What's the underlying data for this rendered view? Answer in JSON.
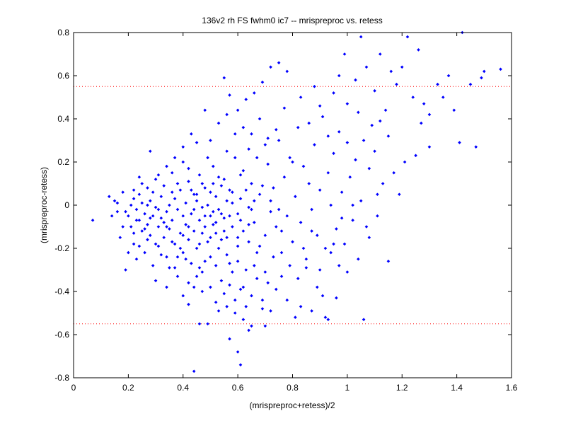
{
  "chart_data": {
    "type": "scatter",
    "title": "136v2 rh FS fwhm0 ic7 -- mrispreproc vs. retess",
    "xlabel": "(mrispreproc+retess)/2",
    "ylabel": "(mrispreproc-retess)",
    "xlim": [
      0,
      1.6
    ],
    "ylim": [
      -0.8,
      0.8
    ],
    "xticks": [
      "0",
      "0.2",
      "0.4",
      "0.6",
      "0.8",
      "1",
      "1.2",
      "1.4",
      "1.6"
    ],
    "yticks": [
      "0.8",
      "0.6",
      "0.4",
      "0.2",
      "0",
      "-0.2",
      "-0.4",
      "-0.6",
      "-0.8"
    ],
    "reference_lines": [
      0.55,
      -0.55
    ],
    "grid": false,
    "colors": {
      "points": "#0000ff",
      "reference": "#ff0000",
      "axes": "#000000"
    },
    "points": [
      [
        0.07,
        -0.07
      ],
      [
        0.13,
        0.04
      ],
      [
        0.14,
        -0.05
      ],
      [
        0.15,
        0.02
      ],
      [
        0.16,
        -0.03
      ],
      [
        0.17,
        -0.15
      ],
      [
        0.18,
        0.06
      ],
      [
        0.19,
        -0.3
      ],
      [
        0.2,
        -0.05
      ],
      [
        0.21,
        0.0
      ],
      [
        0.21,
        -0.1
      ],
      [
        0.22,
        0.03
      ],
      [
        0.22,
        -0.18
      ],
      [
        0.23,
        -0.02
      ],
      [
        0.23,
        -0.25
      ],
      [
        0.24,
        0.05
      ],
      [
        0.24,
        -0.07
      ],
      [
        0.25,
        -0.12
      ],
      [
        0.25,
        0.01
      ],
      [
        0.26,
        -0.04
      ],
      [
        0.26,
        -0.22
      ],
      [
        0.27,
        0.08
      ],
      [
        0.27,
        -0.09
      ],
      [
        0.28,
        -0.14
      ],
      [
        0.28,
        0.02
      ],
      [
        0.29,
        -0.05
      ],
      [
        0.29,
        -0.28
      ],
      [
        0.3,
        0.12
      ],
      [
        0.3,
        -0.01
      ],
      [
        0.31,
        -0.1
      ],
      [
        0.31,
        -0.19
      ],
      [
        0.32,
        0.04
      ],
      [
        0.32,
        -0.06
      ],
      [
        0.33,
        -0.15
      ],
      [
        0.33,
        0.09
      ],
      [
        0.34,
        -0.03
      ],
      [
        0.34,
        -0.24
      ],
      [
        0.35,
        0.0
      ],
      [
        0.35,
        -0.11
      ],
      [
        0.36,
        0.15
      ],
      [
        0.36,
        -0.07
      ],
      [
        0.37,
        -0.18
      ],
      [
        0.37,
        0.03
      ],
      [
        0.38,
        -0.02
      ],
      [
        0.38,
        -0.33
      ],
      [
        0.39,
        0.07
      ],
      [
        0.39,
        -0.13
      ],
      [
        0.4,
        -0.05
      ],
      [
        0.4,
        0.2
      ],
      [
        0.4,
        -0.22
      ],
      [
        0.41,
        0.01
      ],
      [
        0.41,
        -0.09
      ],
      [
        0.42,
        -0.16
      ],
      [
        0.42,
        0.11
      ],
      [
        0.43,
        -0.04
      ],
      [
        0.43,
        -0.27
      ],
      [
        0.44,
        0.05
      ],
      [
        0.44,
        -0.12
      ],
      [
        0.45,
        -0.2
      ],
      [
        0.45,
        0.02
      ],
      [
        0.46,
        -0.07
      ],
      [
        0.46,
        0.14
      ],
      [
        0.47,
        -0.31
      ],
      [
        0.47,
        -0.01
      ],
      [
        0.48,
        -0.1
      ],
      [
        0.48,
        0.08
      ],
      [
        0.49,
        -0.17
      ],
      [
        0.49,
        0.0
      ],
      [
        0.5,
        -0.05
      ],
      [
        0.5,
        -0.24
      ],
      [
        0.51,
        0.18
      ],
      [
        0.51,
        -0.09
      ],
      [
        0.52,
        -0.13
      ],
      [
        0.52,
        0.04
      ],
      [
        0.53,
        -0.02
      ],
      [
        0.53,
        -0.2
      ],
      [
        0.54,
        0.09
      ],
      [
        0.54,
        -0.35
      ],
      [
        0.55,
        -0.06
      ],
      [
        0.55,
        0.12
      ],
      [
        0.56,
        -0.15
      ],
      [
        0.56,
        0.02
      ],
      [
        0.57,
        -0.27
      ],
      [
        0.58,
        0.06
      ],
      [
        0.58,
        -0.1
      ],
      [
        0.59,
        0.22
      ],
      [
        0.6,
        -0.04
      ],
      [
        0.6,
        -0.19
      ],
      [
        0.61,
        0.03
      ],
      [
        0.62,
        -0.12
      ],
      [
        0.62,
        0.16
      ],
      [
        0.63,
        -0.3
      ],
      [
        0.64,
        -0.01
      ],
      [
        0.65,
        0.1
      ],
      [
        0.66,
        -0.08
      ],
      [
        0.67,
        -0.22
      ],
      [
        0.68,
        0.05
      ],
      [
        0.7,
        -0.14
      ],
      [
        0.71,
        0.19
      ],
      [
        0.72,
        -0.03
      ],
      [
        0.24,
        0.13
      ],
      [
        0.27,
        -0.16
      ],
      [
        0.29,
        0.06
      ],
      [
        0.31,
        -0.02
      ],
      [
        0.33,
        -0.08
      ],
      [
        0.35,
        -0.29
      ],
      [
        0.36,
        0.06
      ],
      [
        0.38,
        0.1
      ],
      [
        0.39,
        -0.2
      ],
      [
        0.41,
        -0.25
      ],
      [
        0.42,
        0.17
      ],
      [
        0.43,
        0.07
      ],
      [
        0.44,
        -0.02
      ],
      [
        0.46,
        -0.18
      ],
      [
        0.47,
        0.1
      ],
      [
        0.48,
        -0.26
      ],
      [
        0.49,
        0.22
      ],
      [
        0.5,
        0.06
      ],
      [
        0.51,
        -0.03
      ],
      [
        0.52,
        -0.28
      ],
      [
        0.53,
        0.13
      ],
      [
        0.55,
        -0.12
      ],
      [
        0.56,
        0.25
      ],
      [
        0.57,
        -0.05
      ],
      [
        0.58,
        0.01
      ],
      [
        0.6,
        -0.26
      ],
      [
        0.61,
        0.14
      ],
      [
        0.63,
        0.07
      ],
      [
        0.64,
        -0.17
      ],
      [
        0.66,
        0.02
      ],
      [
        0.3,
        -0.35
      ],
      [
        0.34,
        -0.38
      ],
      [
        0.37,
        -0.29
      ],
      [
        0.4,
        -0.42
      ],
      [
        0.42,
        -0.36
      ],
      [
        0.45,
        -0.33
      ],
      [
        0.47,
        -0.4
      ],
      [
        0.5,
        -0.38
      ],
      [
        0.52,
        -0.45
      ],
      [
        0.55,
        -0.41
      ],
      [
        0.57,
        -0.37
      ],
      [
        0.59,
        -0.44
      ],
      [
        0.61,
        -0.39
      ],
      [
        0.63,
        -0.47
      ],
      [
        0.65,
        -0.42
      ],
      [
        0.67,
        -0.34
      ],
      [
        0.69,
        -0.44
      ],
      [
        0.71,
        -0.36
      ],
      [
        0.74,
        -0.39
      ],
      [
        0.76,
        -0.33
      ],
      [
        0.42,
        -0.46
      ],
      [
        0.46,
        -0.55
      ],
      [
        0.49,
        -0.55
      ],
      [
        0.53,
        -0.49
      ],
      [
        0.56,
        -0.47
      ],
      [
        0.59,
        -0.5
      ],
      [
        0.62,
        -0.53
      ],
      [
        0.65,
        -0.56
      ],
      [
        0.69,
        -0.48
      ],
      [
        0.72,
        -0.49
      ],
      [
        0.44,
        -0.77
      ],
      [
        0.6,
        -0.68
      ],
      [
        0.61,
        -0.74
      ],
      [
        0.57,
        -0.62
      ],
      [
        0.64,
        -0.58
      ],
      [
        0.7,
        -0.56
      ],
      [
        0.78,
        -0.44
      ],
      [
        0.81,
        -0.52
      ],
      [
        0.87,
        -0.49
      ],
      [
        0.92,
        -0.52
      ],
      [
        0.93,
        -0.53
      ],
      [
        0.96,
        -0.43
      ],
      [
        1.0,
        -0.31
      ],
      [
        1.04,
        -0.25
      ],
      [
        1.06,
        -0.53
      ],
      [
        1.15,
        -0.26
      ],
      [
        0.83,
        -0.47
      ],
      [
        0.89,
        -0.38
      ],
      [
        0.91,
        -0.42
      ],
      [
        0.85,
        -0.29
      ],
      [
        0.73,
        0.08
      ],
      [
        0.74,
        -0.1
      ],
      [
        0.75,
        0.3
      ],
      [
        0.76,
        -0.22
      ],
      [
        0.77,
        0.13
      ],
      [
        0.78,
        -0.05
      ],
      [
        0.79,
        0.22
      ],
      [
        0.8,
        -0.17
      ],
      [
        0.81,
        0.04
      ],
      [
        0.82,
        0.36
      ],
      [
        0.83,
        -0.08
      ],
      [
        0.84,
        0.18
      ],
      [
        0.85,
        -0.25
      ],
      [
        0.86,
        0.1
      ],
      [
        0.87,
        -0.02
      ],
      [
        0.88,
        0.28
      ],
      [
        0.89,
        -0.14
      ],
      [
        0.9,
        0.07
      ],
      [
        0.91,
        0.41
      ],
      [
        0.92,
        -0.2
      ],
      [
        0.93,
        0.15
      ],
      [
        0.94,
        0.0
      ],
      [
        0.95,
        0.24
      ],
      [
        0.96,
        -0.11
      ],
      [
        0.97,
        0.34
      ],
      [
        0.98,
        0.06
      ],
      [
        0.99,
        -0.18
      ],
      [
        1.0,
        0.29
      ],
      [
        1.01,
        0.13
      ],
      [
        1.02,
        -0.07
      ],
      [
        1.03,
        0.21
      ],
      [
        1.04,
        0.43
      ],
      [
        1.05,
        0.02
      ],
      [
        1.06,
        0.3
      ],
      [
        1.07,
        -0.1
      ],
      [
        1.08,
        0.17
      ],
      [
        1.09,
        0.37
      ],
      [
        1.1,
        0.25
      ],
      [
        1.11,
        0.05
      ],
      [
        1.12,
        0.39
      ],
      [
        0.74,
        0.35
      ],
      [
        0.77,
        0.45
      ],
      [
        0.8,
        0.2
      ],
      [
        0.83,
        0.5
      ],
      [
        0.86,
        0.38
      ],
      [
        0.88,
        0.55
      ],
      [
        0.9,
        0.46
      ],
      [
        0.93,
        0.32
      ],
      [
        0.95,
        0.52
      ],
      [
        0.97,
        0.6
      ],
      [
        0.99,
        0.7
      ],
      [
        1.0,
        0.47
      ],
      [
        1.03,
        0.58
      ],
      [
        1.05,
        0.78
      ],
      [
        1.07,
        0.64
      ],
      [
        1.1,
        0.53
      ],
      [
        1.12,
        0.7
      ],
      [
        1.14,
        0.44
      ],
      [
        1.16,
        0.62
      ],
      [
        1.18,
        0.56
      ],
      [
        1.2,
        0.64
      ],
      [
        1.22,
        0.78
      ],
      [
        1.24,
        0.5
      ],
      [
        1.26,
        0.72
      ],
      [
        1.27,
        0.38
      ],
      [
        1.28,
        0.47
      ],
      [
        1.3,
        0.42
      ],
      [
        1.33,
        0.56
      ],
      [
        1.35,
        0.5
      ],
      [
        1.37,
        0.6
      ],
      [
        1.39,
        0.44
      ],
      [
        1.42,
        0.8
      ],
      [
        1.45,
        0.56
      ],
      [
        1.47,
        0.27
      ],
      [
        1.49,
        0.59
      ],
      [
        1.5,
        0.62
      ],
      [
        1.56,
        0.63
      ],
      [
        1.41,
        0.29
      ],
      [
        1.3,
        0.27
      ],
      [
        1.25,
        0.23
      ],
      [
        0.55,
        0.59
      ],
      [
        0.57,
        0.51
      ],
      [
        0.6,
        0.44
      ],
      [
        0.63,
        0.49
      ],
      [
        0.66,
        0.52
      ],
      [
        0.69,
        0.57
      ],
      [
        0.72,
        0.64
      ],
      [
        0.75,
        0.66
      ],
      [
        0.78,
        0.62
      ],
      [
        0.62,
        0.36
      ],
      [
        0.65,
        0.33
      ],
      [
        0.68,
        0.4
      ],
      [
        0.71,
        0.31
      ],
      [
        0.64,
        0.26
      ],
      [
        0.67,
        0.22
      ],
      [
        0.7,
        0.28
      ],
      [
        0.59,
        0.33
      ],
      [
        0.56,
        0.42
      ],
      [
        0.53,
        0.38
      ],
      [
        0.5,
        0.3
      ],
      [
        0.45,
        0.29
      ],
      [
        0.48,
        0.44
      ],
      [
        0.43,
        0.33
      ],
      [
        0.4,
        0.27
      ],
      [
        0.37,
        0.22
      ],
      [
        0.34,
        0.18
      ],
      [
        0.31,
        0.14
      ],
      [
        0.28,
        0.25
      ],
      [
        0.25,
        0.1
      ],
      [
        0.22,
        0.07
      ],
      [
        1.13,
        0.1
      ],
      [
        1.15,
        0.32
      ],
      [
        1.17,
        0.15
      ],
      [
        1.19,
        0.05
      ],
      [
        1.21,
        0.2
      ],
      [
        1.08,
        -0.15
      ],
      [
        1.11,
        -0.05
      ],
      [
        1.02,
        0.0
      ],
      [
        0.97,
        -0.28
      ],
      [
        0.94,
        -0.22
      ],
      [
        0.82,
        -0.34
      ],
      [
        0.84,
        -0.2
      ],
      [
        0.87,
        -0.12
      ],
      [
        0.9,
        -0.3
      ],
      [
        0.95,
        -0.18
      ],
      [
        0.98,
        -0.06
      ],
      [
        0.79,
        -0.28
      ],
      [
        0.76,
        -0.12
      ],
      [
        0.73,
        -0.24
      ],
      [
        0.7,
        -0.31
      ],
      [
        0.68,
        -0.19
      ],
      [
        0.66,
        -0.28
      ],
      [
        0.64,
        -0.09
      ],
      [
        0.62,
        -0.38
      ],
      [
        0.6,
        -0.15
      ],
      [
        0.58,
        -0.31
      ],
      [
        0.56,
        -0.23
      ],
      [
        0.54,
        -0.16
      ],
      [
        0.52,
        -0.08
      ],
      [
        0.5,
        -0.15
      ],
      [
        0.48,
        -0.05
      ],
      [
        0.46,
        -0.29
      ],
      [
        0.44,
        -0.38
      ],
      [
        0.42,
        -0.1
      ],
      [
        0.4,
        -0.14
      ],
      [
        0.38,
        -0.24
      ],
      [
        0.36,
        -0.17
      ],
      [
        0.34,
        -0.1
      ],
      [
        0.32,
        -0.23
      ],
      [
        0.3,
        -0.18
      ],
      [
        0.28,
        -0.06
      ],
      [
        0.26,
        -0.11
      ],
      [
        0.24,
        -0.19
      ],
      [
        0.22,
        -0.13
      ],
      [
        0.2,
        -0.22
      ],
      [
        0.18,
        -0.1
      ],
      [
        0.16,
        0.01
      ],
      [
        0.19,
        -0.03
      ],
      [
        0.23,
        -0.07
      ],
      [
        0.27,
        0.0
      ],
      [
        0.45,
        0.05
      ],
      [
        0.47,
        -0.13
      ],
      [
        0.51,
        0.1
      ],
      [
        0.54,
        -0.04
      ],
      [
        0.57,
        0.07
      ],
      [
        0.61,
        -0.07
      ],
      [
        0.65,
        -0.02
      ],
      [
        0.69,
        0.09
      ],
      [
        0.72,
        0.02
      ],
      [
        0.75,
        -0.02
      ]
    ]
  }
}
